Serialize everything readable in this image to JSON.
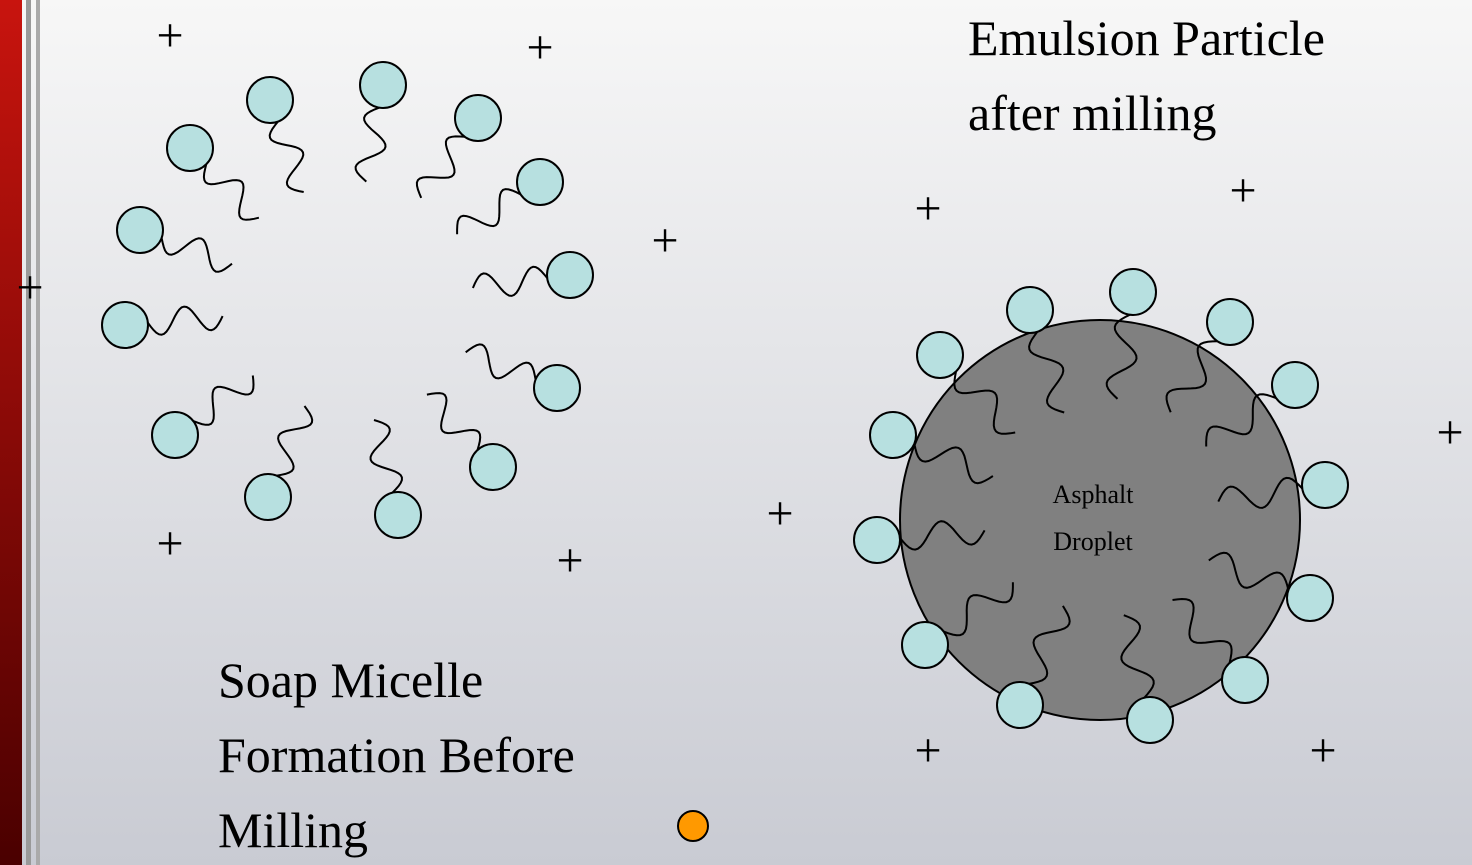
{
  "micelle": {
    "caption": [
      "Soap Micelle",
      "Formation Before",
      "Milling"
    ]
  },
  "emulsion": {
    "caption": [
      "Emulsion Particle",
      "after milling"
    ],
    "droplet_label": [
      "Asphalt",
      "Droplet"
    ]
  },
  "charges": [
    "+",
    "+",
    "+",
    "+",
    "+",
    "+",
    "+",
    "+",
    "+",
    "+",
    "+",
    "+"
  ]
}
